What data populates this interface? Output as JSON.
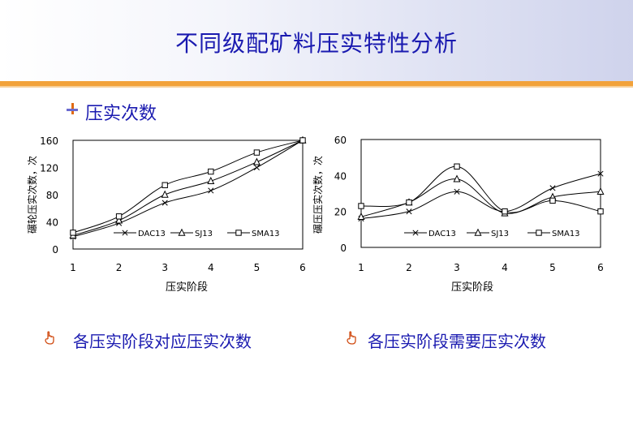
{
  "header": {
    "title": "不同级配矿料压实特性分析"
  },
  "section": {
    "title": "压实次数"
  },
  "captions": {
    "left": "各压实阶段对应压实次数",
    "right": "各压实阶段需要压实次数"
  },
  "colors": {
    "title": "#1a1ab0",
    "accent_bar": "#f2a23a",
    "line": "#000000"
  },
  "chart_data": [
    {
      "type": "line",
      "xlabel": "压实阶段",
      "ylabel": "碾轮压实次数，次",
      "x": [
        1,
        2,
        3,
        4,
        5,
        6
      ],
      "xticks": [
        "1",
        "2",
        "3",
        "4",
        "5",
        "6"
      ],
      "yticks": [
        "0",
        "40",
        "80",
        "120",
        "160"
      ],
      "ylim": [
        0,
        160
      ],
      "legend_position": "bottom-right",
      "series": [
        {
          "name": "DAC13",
          "marker": "x",
          "values": [
            18,
            38,
            68,
            86,
            120,
            160
          ]
        },
        {
          "name": "SJ13",
          "marker": "triangle",
          "values": [
            20,
            42,
            80,
            100,
            128,
            160
          ]
        },
        {
          "name": "SMA13",
          "marker": "square",
          "values": [
            24,
            48,
            94,
            114,
            142,
            160
          ]
        }
      ]
    },
    {
      "type": "line",
      "xlabel": "压实阶段",
      "ylabel": "碾压压实次数，次",
      "x": [
        1,
        2,
        3,
        4,
        5,
        6
      ],
      "xticks": [
        "1",
        "2",
        "3",
        "4",
        "5",
        "6"
      ],
      "yticks": [
        "0",
        "20",
        "40",
        "60"
      ],
      "ylim": [
        0,
        60
      ],
      "legend_position": "bottom-right",
      "series": [
        {
          "name": "DAC13",
          "marker": "x",
          "values": [
            16,
            20,
            31,
            20,
            33,
            41
          ]
        },
        {
          "name": "SJ13",
          "marker": "triangle",
          "values": [
            17,
            25,
            38,
            19,
            28,
            31
          ]
        },
        {
          "name": "SMA13",
          "marker": "square",
          "values": [
            23,
            25,
            45,
            20,
            26,
            20
          ]
        }
      ]
    }
  ]
}
